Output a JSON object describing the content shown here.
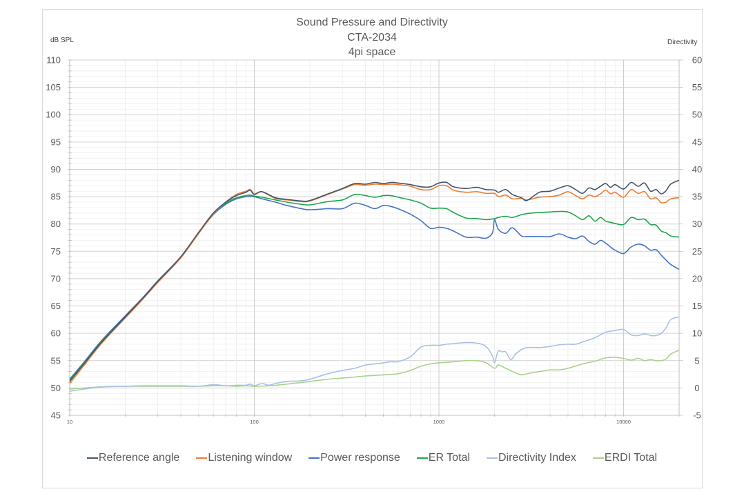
{
  "chart_data": {
    "type": "line",
    "title": "Sound Pressure and Directivity",
    "subtitle_lines": [
      "CTA-2034",
      "4pi space"
    ],
    "xlabel": "",
    "ylabel": "dB SPL",
    "y2label": "Directivity",
    "xscale": "log",
    "xlim": [
      10,
      20000
    ],
    "ylim": [
      45,
      110
    ],
    "y2lim": [
      -5,
      60
    ],
    "x_ticks": [
      10,
      100,
      1000,
      10000
    ],
    "x_tick_labels": [
      "10",
      "100",
      "1000",
      "10000"
    ],
    "y_ticks": [
      110,
      105,
      100,
      95,
      90,
      85,
      80,
      75,
      70,
      65,
      60,
      55,
      50,
      45
    ],
    "y2_ticks": [
      60,
      55,
      50,
      45,
      40,
      35,
      30,
      25,
      20,
      15,
      10,
      5,
      0,
      -5
    ],
    "grid": true,
    "legend_position": "bottom",
    "series": [
      {
        "name": "Reference angle",
        "axis": "left",
        "color": "#44546a",
        "x": [
          10,
          12,
          15,
          20,
          25,
          30,
          40,
          50,
          60,
          70,
          80,
          90,
          95,
          100,
          110,
          130,
          150,
          180,
          200,
          250,
          300,
          350,
          400,
          450,
          500,
          550,
          600,
          700,
          800,
          900,
          1000,
          1100,
          1200,
          1400,
          1600,
          1800,
          2000,
          2100,
          2300,
          2500,
          2800,
          3000,
          3500,
          4000,
          4500,
          5000,
          5500,
          6000,
          6500,
          7000,
          7500,
          8000,
          8500,
          9000,
          10000,
          11000,
          12000,
          13000,
          14000,
          15000,
          16000,
          17000,
          18000,
          20000
        ],
        "y": [
          51.2,
          54.5,
          58.5,
          63,
          66.5,
          69.5,
          74,
          78.5,
          82,
          84,
          85.2,
          85.8,
          86.2,
          85.4,
          85.9,
          84.8,
          84.5,
          84.2,
          84.3,
          85.5,
          86.5,
          87.4,
          87.3,
          87.6,
          87.4,
          87.6,
          87.5,
          87.2,
          86.8,
          86.8,
          87.5,
          87.6,
          86.8,
          86.5,
          86.7,
          86.3,
          86.2,
          85.8,
          86.3,
          85.4,
          84.8,
          84.3,
          85.8,
          86.0,
          86.6,
          87.0,
          86.3,
          85.6,
          86.6,
          86.3,
          86.9,
          87.4,
          86.7,
          87.2,
          86.4,
          87.6,
          86.9,
          87.5,
          86.0,
          86.3,
          85.5,
          86.1,
          87.3,
          88.0
        ]
      },
      {
        "name": "Listening window",
        "axis": "left",
        "color": "#ed7d31",
        "x": [
          10,
          12,
          15,
          20,
          25,
          30,
          40,
          50,
          60,
          70,
          80,
          90,
          95,
          100,
          110,
          130,
          150,
          180,
          200,
          250,
          300,
          350,
          400,
          450,
          500,
          550,
          600,
          700,
          800,
          900,
          1000,
          1100,
          1200,
          1400,
          1600,
          1800,
          2000,
          2100,
          2300,
          2500,
          2800,
          3000,
          3500,
          4000,
          4500,
          5000,
          5500,
          6000,
          6500,
          7000,
          7500,
          8000,
          8500,
          9000,
          10000,
          11000,
          12000,
          13000,
          14000,
          15000,
          16000,
          17000,
          18000,
          20000
        ],
        "y": [
          50.8,
          54.2,
          58.3,
          62.8,
          66.3,
          69.3,
          73.8,
          78.3,
          81.8,
          84.0,
          85.4,
          86.0,
          86.3,
          85.5,
          85.9,
          84.7,
          84.4,
          84.1,
          84.2,
          85.4,
          86.4,
          87.2,
          87.1,
          87.3,
          87.2,
          87.3,
          87.2,
          86.9,
          86.3,
          86.3,
          87.0,
          87.0,
          86.2,
          85.8,
          85.9,
          85.6,
          85.6,
          85.0,
          85.3,
          84.6,
          84.7,
          84.4,
          84.9,
          85.0,
          85.3,
          85.9,
          85.2,
          84.6,
          85.3,
          85.0,
          85.5,
          86.2,
          85.5,
          85.8,
          84.9,
          86.3,
          85.6,
          85.9,
          84.6,
          84.8,
          83.9,
          84.0,
          84.6,
          84.8
        ]
      },
      {
        "name": "Power response",
        "axis": "left",
        "color": "#4472c4",
        "x": [
          10,
          12,
          15,
          20,
          25,
          30,
          40,
          50,
          60,
          70,
          80,
          90,
          95,
          100,
          110,
          130,
          150,
          180,
          200,
          250,
          300,
          350,
          400,
          450,
          500,
          550,
          600,
          700,
          800,
          900,
          1000,
          1100,
          1200,
          1400,
          1600,
          1800,
          1950,
          2000,
          2100,
          2300,
          2500,
          2800,
          3000,
          3500,
          4000,
          4500,
          5000,
          5500,
          6000,
          6500,
          7000,
          7500,
          8000,
          8500,
          9000,
          10000,
          11000,
          12000,
          13000,
          14000,
          15000,
          16000,
          17000,
          18000,
          20000
        ],
        "y": [
          51.6,
          54.8,
          58.8,
          63.2,
          66.6,
          69.6,
          74.0,
          78.4,
          81.7,
          83.6,
          84.6,
          85.0,
          85.1,
          85.0,
          84.6,
          84.0,
          83.4,
          82.8,
          82.6,
          82.8,
          82.8,
          83.8,
          83.4,
          82.8,
          83.4,
          83.2,
          82.8,
          81.8,
          80.6,
          79.2,
          79.4,
          79.2,
          78.7,
          77.6,
          77.6,
          77.4,
          78.4,
          80.8,
          79.0,
          78.3,
          79.3,
          77.8,
          77.7,
          77.7,
          77.7,
          78.2,
          77.6,
          77.3,
          77.8,
          76.8,
          76.3,
          77.0,
          76.5,
          75.8,
          75.2,
          74.6,
          75.8,
          76.3,
          76.0,
          75.2,
          75.3,
          74.3,
          73.4,
          72.6,
          71.7
        ]
      },
      {
        "name": "ER Total",
        "axis": "left",
        "color": "#1fa64b",
        "x": [
          10,
          12,
          15,
          20,
          25,
          30,
          40,
          50,
          60,
          70,
          80,
          90,
          95,
          100,
          110,
          130,
          150,
          180,
          200,
          250,
          300,
          350,
          400,
          450,
          500,
          550,
          600,
          700,
          800,
          900,
          1000,
          1100,
          1200,
          1400,
          1600,
          1800,
          2000,
          2100,
          2300,
          2500,
          2800,
          3000,
          3500,
          4000,
          4500,
          5000,
          5500,
          6000,
          6500,
          7000,
          7500,
          8000,
          8500,
          9000,
          10000,
          11000,
          12000,
          13000,
          14000,
          15000,
          16000,
          17000,
          18000,
          20000
        ],
        "y": [
          51.4,
          54.6,
          58.6,
          63.0,
          66.4,
          69.4,
          73.9,
          78.3,
          81.8,
          83.8,
          84.8,
          85.2,
          85.3,
          85.1,
          84.9,
          84.4,
          84.0,
          83.6,
          83.5,
          84.1,
          84.4,
          85.4,
          85.2,
          84.9,
          85.2,
          85.2,
          84.9,
          84.4,
          83.8,
          82.9,
          82.9,
          82.8,
          82.1,
          81.1,
          81.0,
          80.8,
          81.0,
          81.2,
          81.4,
          81.2,
          81.7,
          81.9,
          82.1,
          82.2,
          82.3,
          82.2,
          81.5,
          80.8,
          81.5,
          80.5,
          81.2,
          80.5,
          80.3,
          80.1,
          79.9,
          81.2,
          80.8,
          80.9,
          79.9,
          79.8,
          78.7,
          78.4,
          77.8,
          77.6
        ]
      },
      {
        "name": "Directivity Index",
        "axis": "right",
        "color": "#a9c0e3",
        "x": [
          10,
          12,
          15,
          20,
          25,
          30,
          40,
          50,
          60,
          70,
          80,
          90,
          95,
          100,
          110,
          120,
          130,
          150,
          180,
          200,
          250,
          300,
          350,
          400,
          450,
          500,
          550,
          600,
          700,
          800,
          900,
          1000,
          1100,
          1200,
          1400,
          1600,
          1800,
          1950,
          2000,
          2050,
          2100,
          2200,
          2300,
          2450,
          2600,
          2800,
          3000,
          3500,
          4000,
          4500,
          5000,
          5500,
          6000,
          7000,
          8000,
          9000,
          10000,
          11000,
          12000,
          13000,
          14000,
          15000,
          16000,
          17000,
          18000,
          20000
        ],
        "y": [
          -0.6,
          -0.2,
          0.2,
          0.3,
          0.4,
          0.4,
          0.4,
          0.3,
          0.6,
          0.4,
          0.5,
          0.5,
          0.7,
          0.4,
          0.8,
          0.5,
          0.8,
          1.2,
          1.3,
          1.6,
          2.6,
          3.2,
          3.6,
          4.2,
          4.4,
          4.6,
          4.8,
          4.8,
          5.7,
          7.5,
          7.8,
          7.8,
          8.0,
          8.1,
          8.3,
          8.2,
          7.6,
          5.8,
          4.6,
          5.8,
          6.8,
          6.6,
          6.6,
          5.2,
          6.2,
          7.0,
          7.4,
          7.4,
          7.6,
          7.9,
          8.0,
          8.0,
          8.4,
          9.2,
          10.2,
          10.5,
          10.7,
          9.7,
          9.6,
          9.9,
          9.6,
          9.6,
          10.0,
          11.0,
          12.5,
          13.0
        ]
      },
      {
        "name": "ERDI Total",
        "axis": "right",
        "color": "#a9d18e",
        "x": [
          10,
          12,
          15,
          20,
          25,
          30,
          40,
          50,
          60,
          70,
          80,
          90,
          100,
          120,
          150,
          200,
          250,
          300,
          350,
          400,
          500,
          600,
          700,
          800,
          900,
          1000,
          1200,
          1400,
          1600,
          1800,
          2000,
          2100,
          2300,
          2500,
          2800,
          3000,
          3500,
          4000,
          4500,
          5000,
          5500,
          6000,
          7000,
          8000,
          9000,
          10000,
          11000,
          12000,
          13000,
          14000,
          15000,
          16000,
          17000,
          18000,
          20000
        ],
        "y": [
          -0.2,
          0.0,
          0.2,
          0.3,
          0.3,
          0.3,
          0.3,
          0.3,
          0.4,
          0.4,
          0.3,
          0.4,
          0.3,
          0.4,
          0.7,
          1.2,
          1.6,
          1.8,
          2.0,
          2.2,
          2.4,
          2.6,
          3.2,
          4.0,
          4.4,
          4.6,
          4.8,
          5.0,
          5.0,
          4.6,
          3.6,
          4.2,
          3.6,
          3.0,
          2.4,
          2.6,
          3.0,
          3.3,
          3.3,
          3.6,
          4.0,
          4.4,
          4.9,
          5.5,
          5.6,
          5.4,
          5.1,
          5.4,
          5.0,
          5.2,
          5.0,
          5.0,
          5.3,
          6.2,
          6.9
        ]
      }
    ]
  }
}
